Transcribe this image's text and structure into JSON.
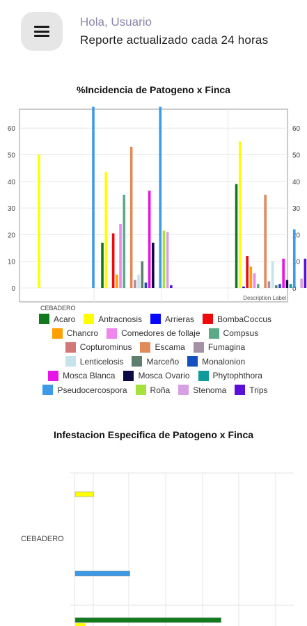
{
  "header": {
    "menu_icon": "hamburger-menu-icon",
    "greeting": "Hola, Usuario",
    "subtitle": "Reporte actualizado cada 24 horas"
  },
  "chart_data": [
    {
      "type": "bar",
      "title": "%Incidencia de Patogeno x Finca",
      "categories": [
        "CEBADERO",
        "",
        "",
        ""
      ],
      "description": "Description Label",
      "ylim": [
        0,
        69
      ],
      "yticks": [
        0,
        10,
        20,
        30,
        40,
        50,
        60
      ],
      "right_axis": true,
      "grid": true,
      "legend_position": "bottom",
      "series": [
        {
          "name": "Acaro",
          "color": "#117a1d",
          "values": [
            null,
            17,
            null,
            39
          ]
        },
        {
          "name": "Antracnosis",
          "color": "#ffff00",
          "values": [
            50,
            43.5,
            null,
            55
          ]
        },
        {
          "name": "Arrieras",
          "color": "#0808ff",
          "values": [
            null,
            null,
            null,
            0.5
          ]
        },
        {
          "name": "BombaCoccus",
          "color": "#ee0a0a",
          "values": [
            null,
            20.5,
            null,
            12
          ]
        },
        {
          "name": "Chancro",
          "color": "#ff9f00",
          "values": [
            null,
            5,
            null,
            8
          ]
        },
        {
          "name": "Comedores de follaje",
          "color": "#ef86ef",
          "values": [
            null,
            24,
            null,
            5.5
          ]
        },
        {
          "name": "Compsus",
          "color": "#5aaa8a",
          "values": [
            null,
            35,
            null,
            1.5
          ]
        },
        {
          "name": "Copturominus",
          "color": "#d27878",
          "values": [
            null,
            null,
            null,
            null
          ]
        },
        {
          "name": "Escama",
          "color": "#e08a5a",
          "values": [
            null,
            53,
            null,
            35
          ]
        },
        {
          "name": "Fumagina",
          "color": "#a591a5",
          "values": [
            null,
            3,
            null,
            2.5
          ]
        },
        {
          "name": "Lenticelosis",
          "color": "#c6e3ec",
          "values": [
            null,
            5,
            null,
            10
          ]
        },
        {
          "name": "Marceño",
          "color": "#5e7e6e",
          "values": [
            null,
            10,
            null,
            1
          ]
        },
        {
          "name": "Monalonion",
          "color": "#1450bf",
          "values": [
            null,
            2,
            null,
            1.5
          ]
        },
        {
          "name": "Mosca Blanca",
          "color": "#e614e6",
          "values": [
            null,
            36.5,
            null,
            11
          ]
        },
        {
          "name": "Mosca Ovario",
          "color": "#0a0a46",
          "values": [
            null,
            17,
            null,
            3
          ]
        },
        {
          "name": "Phytophthora",
          "color": "#109a9a",
          "values": [
            null,
            null,
            null,
            1.5
          ]
        },
        {
          "name": "Pseudocercospora",
          "color": "#3d9ae6",
          "values": [
            68,
            68,
            null,
            22
          ]
        },
        {
          "name": "Roña",
          "color": "#a6e23c",
          "values": [
            null,
            21.5,
            null,
            null
          ]
        },
        {
          "name": "Stenoma",
          "color": "#d7a0e2",
          "values": [
            null,
            21,
            null,
            3.5
          ]
        },
        {
          "name": "Trips",
          "color": "#5a10d8",
          "values": [
            null,
            1,
            null,
            11
          ]
        }
      ]
    },
    {
      "type": "bar",
      "orientation": "horizontal",
      "title": "Infestacion Especifica de Patogeno x Finca",
      "categories": [
        "CEBADERO"
      ],
      "grid": true,
      "series": [
        {
          "name": "Antracnosis",
          "color": "#ffff00",
          "values": [
            1
          ]
        },
        {
          "name": "Pseudocercospora",
          "color": "#3d9ae6",
          "values": [
            3
          ]
        },
        {
          "name": "Acaro",
          "color": "#117a1d",
          "values": [
            8
          ]
        }
      ]
    }
  ]
}
